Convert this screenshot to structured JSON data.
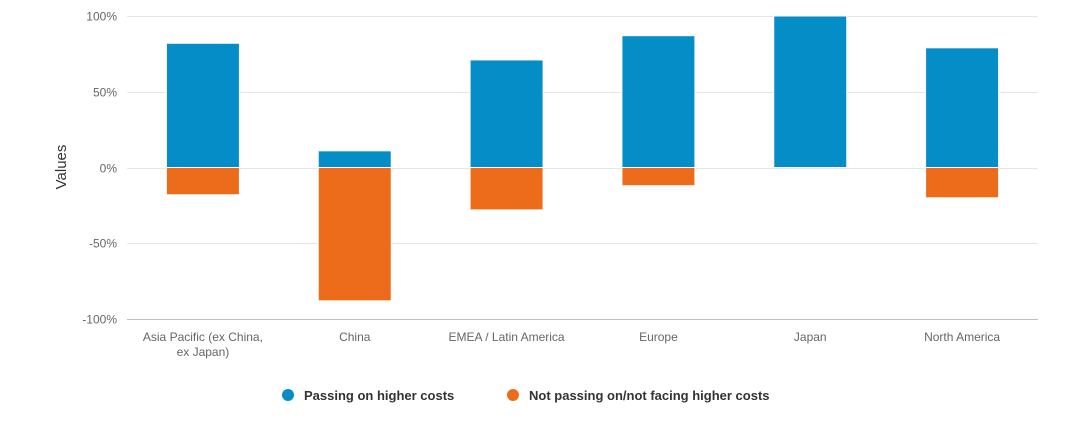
{
  "chart_data": {
    "type": "bar",
    "stacked": true,
    "categories": [
      "Asia Pacific (ex China, ex Japan)",
      "China",
      "EMEA / Latin America",
      "Europe",
      "Japan",
      "North America"
    ],
    "category_label_lines": [
      [
        "Asia Pacific (ex China,",
        "ex Japan)"
      ],
      [
        "China"
      ],
      [
        "EMEA / Latin America"
      ],
      [
        "Europe"
      ],
      [
        "Japan"
      ],
      [
        "North America"
      ]
    ],
    "series": [
      {
        "name": "Passing on higher costs",
        "color": "#058DC7",
        "values": [
          82,
          11,
          71,
          87,
          100,
          79
        ]
      },
      {
        "name": "Not passing on/not facing higher costs",
        "color": "#ED6C1B",
        "values": [
          -18,
          -88,
          -28,
          -12,
          0,
          -20
        ]
      }
    ],
    "ylabel": "Values",
    "ylim": [
      -100,
      100
    ],
    "yticks": [
      100,
      50,
      0,
      -50,
      -100
    ],
    "ytick_labels": [
      "100%",
      "50%",
      "0%",
      "-50%",
      "-100%"
    ],
    "grid": true,
    "legend_position": "bottom-center"
  }
}
